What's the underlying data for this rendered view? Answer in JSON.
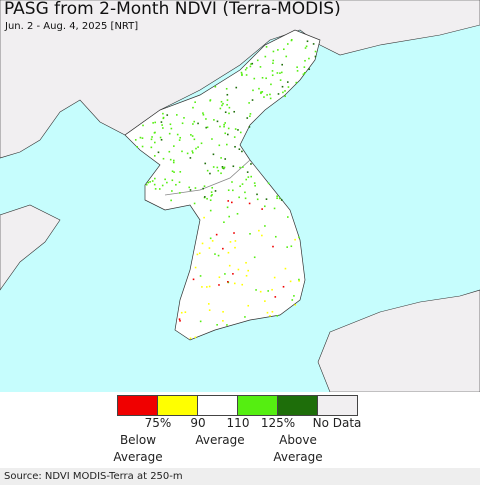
{
  "header": {
    "title": "PASG from 2-Month NDVI (Terra-MODIS)",
    "subtitle": "Jun. 2 - Aug. 4, 2025 [NRT]"
  },
  "legend": {
    "ticks": [
      "75%",
      "90",
      "110",
      "125%"
    ],
    "no_data": "No Data",
    "groups": [
      "Below Average",
      "Average",
      "Above Average"
    ]
  },
  "footer": {
    "source": "Source: NDVI MODIS-Terra at 250-m"
  }
}
